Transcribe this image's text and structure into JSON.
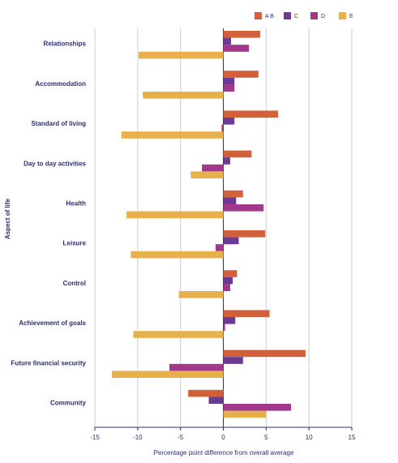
{
  "chart_data": {
    "type": "hbar",
    "x_label": "Percentage point difference from overall average",
    "y_label": "Aspect of life",
    "categories": [
      "Relationships",
      "Accommodation",
      "Standard of living",
      "Day to day activities",
      "Health",
      "Leisure",
      "Control",
      "Achievement of goals",
      "Future financial security",
      "Community"
    ],
    "series": [
      {
        "name": "A B",
        "color": "#d2603a",
        "values": [
          4.3,
          4.1,
          6.4,
          3.3,
          2.3,
          4.9,
          1.6,
          5.4,
          9.6,
          -4.1
        ]
      },
      {
        "name": "C",
        "color": "#6b3a92",
        "values": [
          0.9,
          1.3,
          1.3,
          0.8,
          1.5,
          1.8,
          1.1,
          1.4,
          2.3,
          -1.7
        ]
      },
      {
        "name": "D",
        "color": "#a2388c",
        "values": [
          3.0,
          1.3,
          -0.2,
          -2.5,
          4.7,
          -0.9,
          0.8,
          0.2,
          -6.3,
          7.9
        ]
      },
      {
        "name": "E",
        "color": "#e8b04a",
        "values": [
          -9.9,
          -9.4,
          -11.9,
          -3.8,
          -11.3,
          -10.8,
          -5.2,
          -10.5,
          -13.0,
          5.0
        ]
      }
    ],
    "xlim": [
      -15,
      15
    ],
    "xticks": [
      -15,
      -10,
      -5,
      0,
      5,
      10,
      15
    ],
    "grid": true
  }
}
